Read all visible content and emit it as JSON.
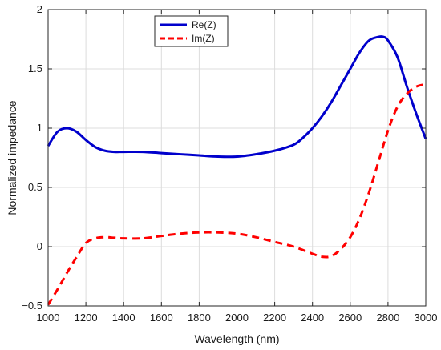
{
  "chart_data": {
    "type": "line",
    "title": "",
    "xlabel": "Wavelength (nm)",
    "ylabel": "Normalized impedance",
    "xlim": [
      1000,
      3000
    ],
    "ylim": [
      -0.5,
      2
    ],
    "x_ticks": [
      1000,
      1200,
      1400,
      1600,
      1800,
      2000,
      2200,
      2400,
      2600,
      2800,
      3000
    ],
    "y_ticks": [
      -0.5,
      0,
      0.5,
      1,
      1.5,
      2
    ],
    "x_tick_labels": [
      "1000",
      "1200",
      "1400",
      "1600",
      "1800",
      "2000",
      "2200",
      "2400",
      "2600",
      "2800",
      "3000"
    ],
    "y_tick_labels": [
      "−0.5",
      "0",
      "0.5",
      "1",
      "1.5",
      "2"
    ],
    "grid": true,
    "legend_position": "top-center",
    "series": [
      {
        "name": "Re(Z)",
        "color": "#0000cc",
        "style": "solid",
        "x": [
          1000,
          1050,
          1100,
          1150,
          1200,
          1250,
          1300,
          1350,
          1400,
          1500,
          1600,
          1700,
          1800,
          1900,
          2000,
          2100,
          2200,
          2300,
          2350,
          2400,
          2450,
          2500,
          2550,
          2600,
          2650,
          2700,
          2750,
          2775,
          2800,
          2850,
          2900,
          2950,
          3000
        ],
        "values": [
          0.85,
          0.97,
          1.0,
          0.97,
          0.9,
          0.84,
          0.81,
          0.8,
          0.8,
          0.8,
          0.79,
          0.78,
          0.77,
          0.76,
          0.76,
          0.78,
          0.81,
          0.86,
          0.92,
          1.0,
          1.1,
          1.22,
          1.36,
          1.5,
          1.64,
          1.74,
          1.77,
          1.77,
          1.74,
          1.6,
          1.35,
          1.12,
          0.91
        ]
      },
      {
        "name": "Im(Z)",
        "color": "#ff0000",
        "style": "dashed",
        "x": [
          1000,
          1050,
          1100,
          1150,
          1200,
          1250,
          1300,
          1350,
          1400,
          1500,
          1600,
          1700,
          1800,
          1900,
          2000,
          2100,
          2200,
          2300,
          2400,
          2450,
          2500,
          2550,
          2600,
          2650,
          2700,
          2750,
          2800,
          2850,
          2900,
          2950,
          3000
        ],
        "values": [
          -0.49,
          -0.36,
          -0.22,
          -0.09,
          0.03,
          0.07,
          0.08,
          0.075,
          0.07,
          0.07,
          0.09,
          0.11,
          0.12,
          0.12,
          0.11,
          0.08,
          0.04,
          0.0,
          -0.06,
          -0.085,
          -0.08,
          -0.02,
          0.08,
          0.24,
          0.46,
          0.72,
          0.98,
          1.18,
          1.29,
          1.35,
          1.37
        ]
      }
    ]
  }
}
